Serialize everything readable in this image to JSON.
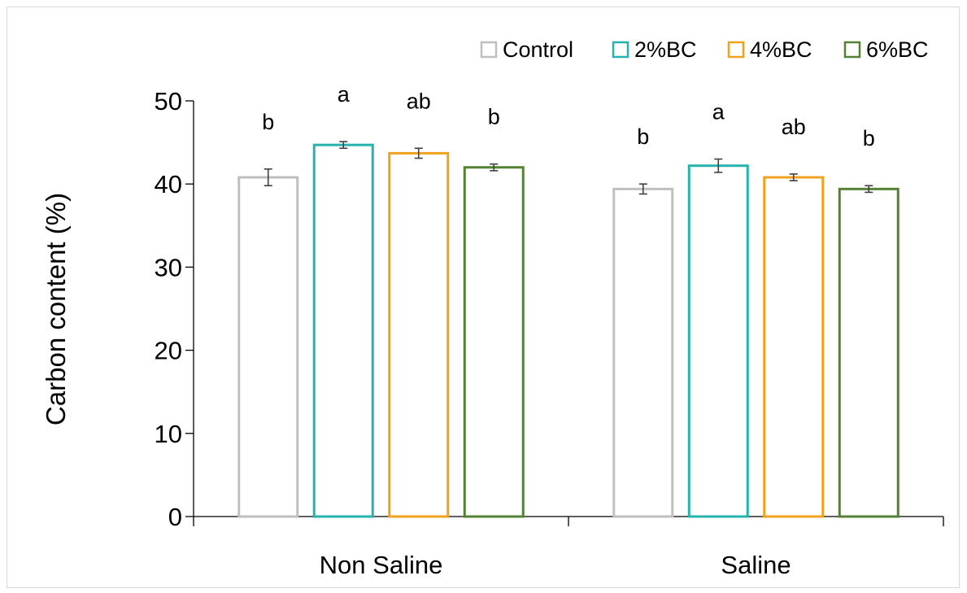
{
  "chart_data": {
    "type": "bar",
    "title": "",
    "xlabel": "",
    "ylabel": "Carbon content (%)",
    "ylim": [
      0,
      50
    ],
    "yticks": [
      0,
      10,
      20,
      30,
      40,
      50
    ],
    "grid": false,
    "legend_position": "top-right",
    "categories": [
      "Non Saline",
      "Saline"
    ],
    "series": [
      {
        "name": "Control",
        "color": "#bfbfbf",
        "values": [
          40.8,
          39.4
        ],
        "errors": [
          1.0,
          0.6
        ],
        "letters": [
          "b",
          "b"
        ]
      },
      {
        "name": "2%BC",
        "color": "#26b3ad",
        "values": [
          44.7,
          42.2
        ],
        "errors": [
          0.4,
          0.8
        ],
        "letters": [
          "a",
          "a"
        ]
      },
      {
        "name": "4%BC",
        "color": "#f0a21e",
        "values": [
          43.7,
          40.8
        ],
        "errors": [
          0.6,
          0.4
        ],
        "letters": [
          "ab",
          "ab"
        ]
      },
      {
        "name": "6%BC",
        "color": "#548235",
        "values": [
          42.0,
          39.4
        ],
        "errors": [
          0.4,
          0.4
        ],
        "letters": [
          "b",
          "b"
        ]
      }
    ]
  }
}
